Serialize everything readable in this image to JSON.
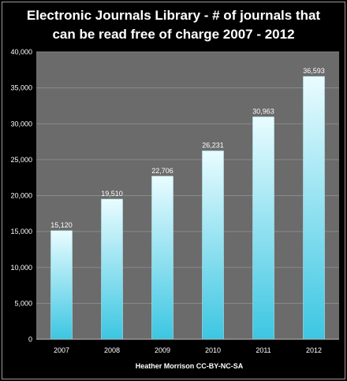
{
  "chart_data": {
    "type": "bar",
    "title_lines": [
      "Electronic Journals Library - # of journals that",
      "can be read free of charge 2007 - 2012"
    ],
    "categories": [
      "2007",
      "2008",
      "2009",
      "2010",
      "2011",
      "2012"
    ],
    "values": [
      15120,
      19510,
      22706,
      26231,
      30963,
      36593
    ],
    "data_labels": [
      "15,120",
      "19,510",
      "22,706",
      "26,231",
      "30,963",
      "36,593"
    ],
    "y_ticks": [
      "0",
      "5,000",
      "10,000",
      "15,000",
      "20,000",
      "25,000",
      "30,000",
      "35,000",
      "40,000"
    ],
    "ylim": [
      0,
      40000
    ],
    "grid": true,
    "legend": "none",
    "footer": "Heather Morrison CC-BY-NC-SA",
    "colors": {
      "background": "#000000",
      "plot_area": "#6b6b6b",
      "grid": "#8a8a8a",
      "bar_light": "#e9fcff",
      "bar_dark": "#3cc6e2"
    }
  }
}
